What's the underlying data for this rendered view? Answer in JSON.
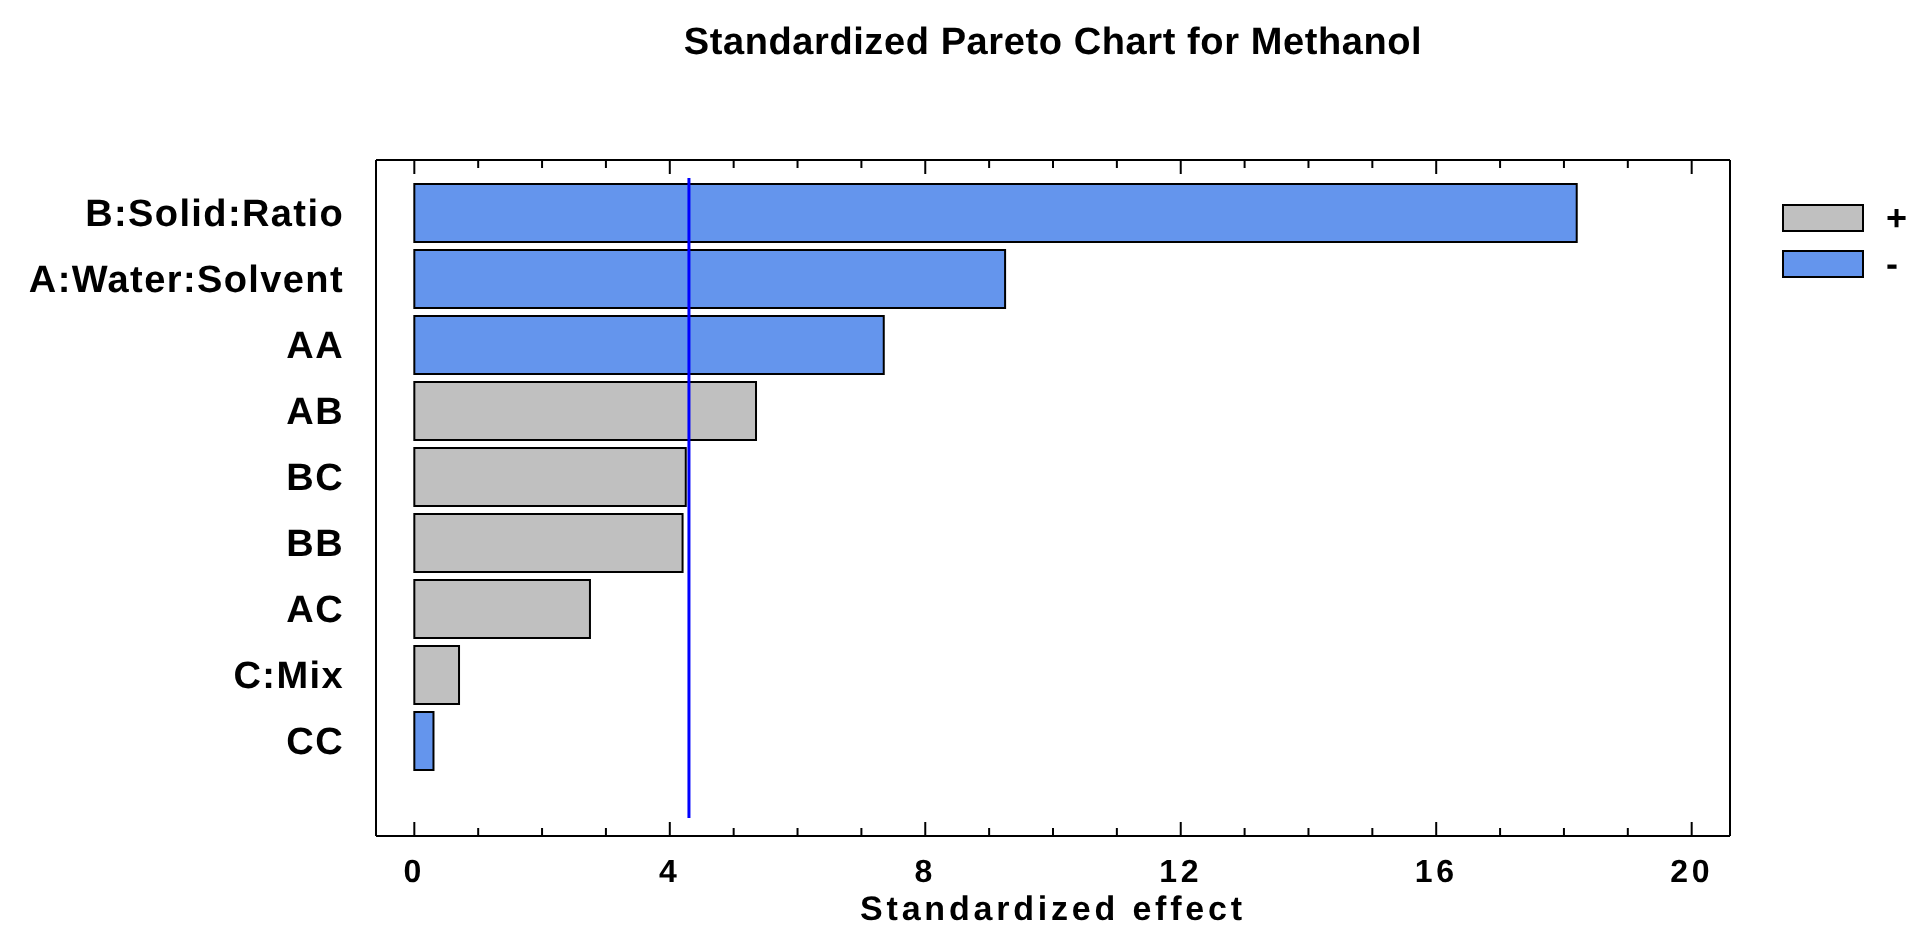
{
  "chart_data": {
    "type": "bar",
    "orientation": "horizontal",
    "stacked": true,
    "title": "Standardized Pareto Chart for Methanol",
    "xlabel": "Standardized effect",
    "categories": [
      "B:Solid:Ratio",
      "A:Water:Solvent",
      "AA",
      "AB",
      "BC",
      "BB",
      "AC",
      "C:Mix",
      "CC"
    ],
    "series": [
      {
        "name": "+",
        "color": "#c0c0c0",
        "values": [
          null,
          null,
          null,
          5.35,
          4.25,
          4.2,
          2.75,
          0.7,
          null
        ]
      },
      {
        "name": "-",
        "color": "#6495ed",
        "values": [
          18.2,
          9.25,
          7.35,
          null,
          null,
          null,
          null,
          null,
          0.3
        ]
      }
    ],
    "xlim": [
      -0.6,
      20.6
    ],
    "xticks": [
      0,
      {
        "value": 1,
        "label": null
      },
      {
        "value": 2,
        "label": null
      },
      {
        "value": 3,
        "label": null
      },
      4,
      {
        "value": 5,
        "label": null
      },
      {
        "value": 6,
        "label": null
      },
      {
        "value": 7,
        "label": null
      },
      8,
      {
        "value": 9,
        "label": null
      },
      {
        "value": 10,
        "label": null
      },
      {
        "value": 11,
        "label": null
      },
      12,
      {
        "value": 13,
        "label": null
      },
      {
        "value": 14,
        "label": null
      },
      {
        "value": 15,
        "label": null
      },
      16,
      {
        "value": 17,
        "label": null
      },
      {
        "value": 18,
        "label": null
      },
      {
        "value": 19,
        "label": null
      },
      20
    ],
    "ref_lines": [
      {
        "axis": "x",
        "value": 4.3,
        "color": "#0000ff"
      }
    ],
    "legend": "right"
  }
}
